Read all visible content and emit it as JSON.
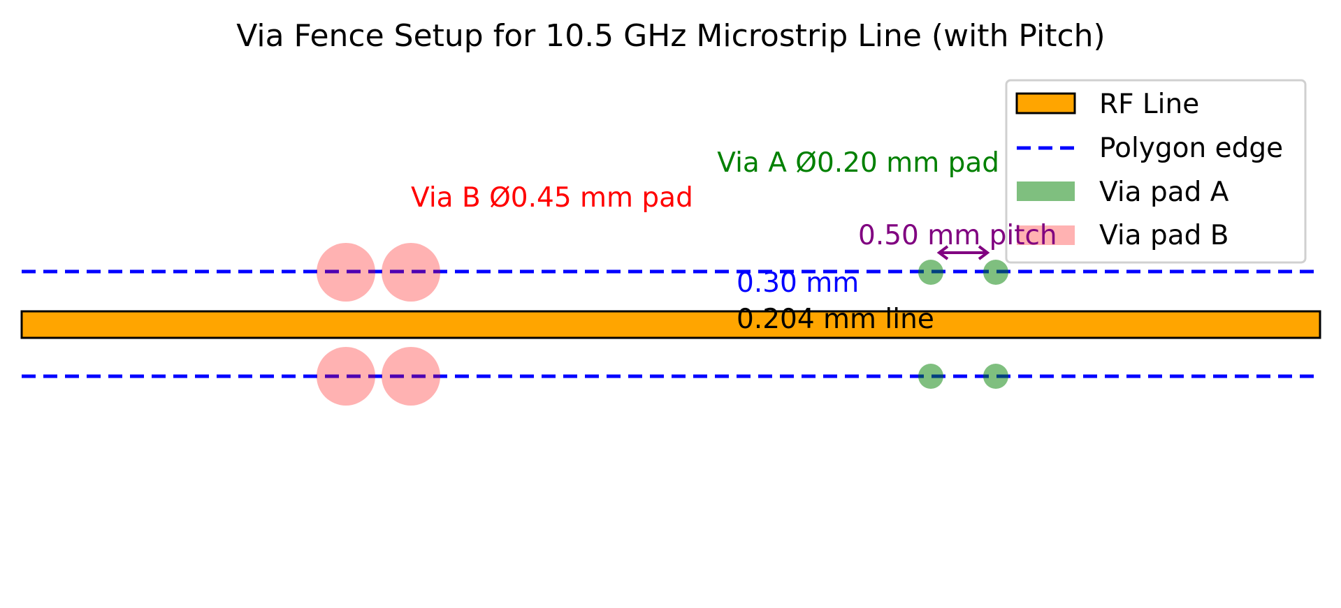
{
  "title": "Via Fence Setup for 10.5 GHz Microstrip Line (with Pitch)",
  "annotations": {
    "via_b": "Via B Ø0.45 mm pad",
    "via_a": "Via A Ø0.20 mm pad",
    "pitch": "0.50 mm pitch",
    "gap": "0.30 mm",
    "line_width": "0.204 mm line"
  },
  "legend": {
    "placement": "top-right",
    "items": [
      {
        "label": "RF Line",
        "kind": "rect"
      },
      {
        "label": "Polygon edge",
        "kind": "dashed-line"
      },
      {
        "label": "Via pad A",
        "kind": "circle"
      },
      {
        "label": "Via pad B",
        "kind": "circle"
      }
    ]
  },
  "colors": {
    "rf_line": "#ffa500",
    "polygon_edge": "#0000ff",
    "via_a": "#80c080",
    "via_b": "#ffb0b0",
    "via_a_text": "#008000",
    "via_b_text": "#ff0000",
    "pitch_text": "#800080",
    "gap_text": "#0000ff"
  }
}
